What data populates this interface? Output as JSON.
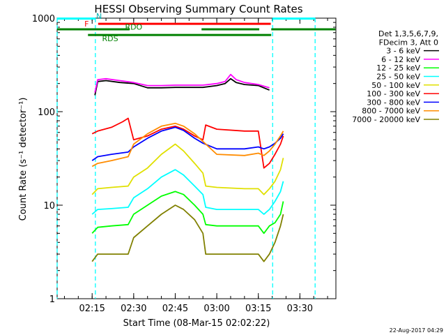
{
  "chart_data": {
    "type": "line",
    "title": "HESSI Observing Summary Count Rates",
    "xlabel": "Start Time (08-Mar-15 02:02:22)",
    "ylabel": "Count Rate (s⁻¹ detector⁻¹)",
    "yscale": "log",
    "ylim": [
      1,
      1000
    ],
    "xlim": [
      "02:02:22",
      "03:43:00"
    ],
    "y_ticks": [
      "1",
      "10",
      "100",
      "1000"
    ],
    "x_ticks": [
      "02:15",
      "02:30",
      "02:45",
      "03:00",
      "03:15",
      "03:30"
    ],
    "legend_header": [
      "Det 1,3,5,6,7,9,",
      "FDecim 3, Att 0"
    ],
    "legend_position": "right",
    "footer": "22-Aug-2017 04:29",
    "flags": {
      "N": {
        "label": "N",
        "intervals": [
          [
            "02:02:22",
            "02:16:10"
          ],
          [
            "03:20:10",
            "03:35:30"
          ]
        ]
      },
      "F": {
        "label": "F",
        "intervals": [
          [
            "02:17:10",
            "03:19:30"
          ]
        ]
      },
      "RDO": {
        "label": "RDO",
        "intervals": [
          [
            "02:02:22",
            "02:28:30"
          ],
          [
            "02:54:30",
            "03:15:20"
          ],
          [
            "03:19:40",
            "03:42:50"
          ]
        ]
      },
      "RDS": {
        "label": "RDS",
        "intervals": [
          [
            "02:13:30",
            "03:19:40"
          ]
        ]
      }
    },
    "boundaries": [
      "02:02:22",
      "02:16:10",
      "03:20:10",
      "03:35:30"
    ],
    "series": [
      {
        "name": "3 - 6 keV",
        "color": "#000000",
        "points": [
          [
            "02:16",
            "150"
          ],
          [
            "02:17",
            "210"
          ],
          [
            "02:20",
            "215"
          ],
          [
            "02:25",
            "205"
          ],
          [
            "02:30",
            "200"
          ],
          [
            "02:35",
            "180"
          ],
          [
            "02:40",
            "180"
          ],
          [
            "02:45",
            "182"
          ],
          [
            "02:50",
            "182"
          ],
          [
            "02:55",
            "182"
          ],
          [
            "03:00",
            "190"
          ],
          [
            "03:03",
            "200"
          ],
          [
            "03:05",
            "225"
          ],
          [
            "03:07",
            "205"
          ],
          [
            "03:10",
            "195"
          ],
          [
            "03:15",
            "190"
          ],
          [
            "03:19",
            "170"
          ]
        ]
      },
      {
        "name": "6 - 12 keV",
        "color": "#ff00ff",
        "points": [
          [
            "02:16",
            "160"
          ],
          [
            "02:17",
            "220"
          ],
          [
            "02:20",
            "225"
          ],
          [
            "02:25",
            "215"
          ],
          [
            "02:30",
            "205"
          ],
          [
            "02:35",
            "190"
          ],
          [
            "02:40",
            "190"
          ],
          [
            "02:45",
            "192"
          ],
          [
            "02:50",
            "192"
          ],
          [
            "02:55",
            "192"
          ],
          [
            "03:00",
            "200"
          ],
          [
            "03:03",
            "210"
          ],
          [
            "03:05",
            "250"
          ],
          [
            "03:07",
            "220"
          ],
          [
            "03:10",
            "205"
          ],
          [
            "03:15",
            "195"
          ],
          [
            "03:19",
            "180"
          ]
        ]
      },
      {
        "name": "12 - 25 keV",
        "color": "#00ff00",
        "points": [
          [
            "02:15",
            "5"
          ],
          [
            "02:17",
            "5.8"
          ],
          [
            "02:22",
            "6"
          ],
          [
            "02:28",
            "6.2"
          ],
          [
            "02:30",
            "8"
          ],
          [
            "02:35",
            "10"
          ],
          [
            "02:40",
            "12.5"
          ],
          [
            "02:45",
            "14"
          ],
          [
            "02:48",
            "13"
          ],
          [
            "02:52",
            "10"
          ],
          [
            "02:55",
            "8"
          ],
          [
            "02:56",
            "6.2"
          ],
          [
            "03:00",
            "6"
          ],
          [
            "03:10",
            "6"
          ],
          [
            "03:15",
            "6"
          ],
          [
            "03:17",
            "5"
          ],
          [
            "03:19",
            "6"
          ],
          [
            "03:21",
            "6.5"
          ],
          [
            "03:23",
            "8"
          ],
          [
            "03:24",
            "11"
          ]
        ]
      },
      {
        "name": "25 - 50 keV",
        "color": "#00ffff",
        "points": [
          [
            "02:15",
            "8"
          ],
          [
            "02:17",
            "9"
          ],
          [
            "02:22",
            "9.2"
          ],
          [
            "02:28",
            "9.5"
          ],
          [
            "02:30",
            "12"
          ],
          [
            "02:35",
            "15"
          ],
          [
            "02:40",
            "20"
          ],
          [
            "02:45",
            "24"
          ],
          [
            "02:48",
            "21"
          ],
          [
            "02:52",
            "16"
          ],
          [
            "02:55",
            "13"
          ],
          [
            "02:56",
            "9.5"
          ],
          [
            "03:00",
            "9"
          ],
          [
            "03:10",
            "9"
          ],
          [
            "03:15",
            "9"
          ],
          [
            "03:17",
            "8"
          ],
          [
            "03:19",
            "9"
          ],
          [
            "03:21",
            "11"
          ],
          [
            "03:23",
            "14"
          ],
          [
            "03:24",
            "18"
          ]
        ]
      },
      {
        "name": "50 - 100 keV",
        "color": "#e0e000",
        "points": [
          [
            "02:15",
            "13"
          ],
          [
            "02:17",
            "15"
          ],
          [
            "02:22",
            "15.5"
          ],
          [
            "02:28",
            "16"
          ],
          [
            "02:30",
            "20"
          ],
          [
            "02:35",
            "25"
          ],
          [
            "02:40",
            "35"
          ],
          [
            "02:45",
            "45"
          ],
          [
            "02:48",
            "38"
          ],
          [
            "02:52",
            "28"
          ],
          [
            "02:55",
            "22"
          ],
          [
            "02:56",
            "16"
          ],
          [
            "03:00",
            "15.5"
          ],
          [
            "03:10",
            "15"
          ],
          [
            "03:15",
            "15"
          ],
          [
            "03:17",
            "13"
          ],
          [
            "03:19",
            "15"
          ],
          [
            "03:21",
            "18"
          ],
          [
            "03:23",
            "24"
          ],
          [
            "03:24",
            "32"
          ]
        ]
      },
      {
        "name": "100 - 300 keV",
        "color": "#ff0000",
        "points": [
          [
            "02:15",
            "58"
          ],
          [
            "02:17",
            "62"
          ],
          [
            "02:22",
            "68"
          ],
          [
            "02:26",
            "78"
          ],
          [
            "02:28",
            "85"
          ],
          [
            "02:30",
            "50"
          ],
          [
            "02:35",
            "55"
          ],
          [
            "02:40",
            "65"
          ],
          [
            "02:45",
            "70"
          ],
          [
            "02:48",
            "65"
          ],
          [
            "02:52",
            "55"
          ],
          [
            "02:55",
            "50"
          ],
          [
            "02:56",
            "72"
          ],
          [
            "03:00",
            "65"
          ],
          [
            "03:10",
            "62"
          ],
          [
            "03:15",
            "62"
          ],
          [
            "03:17",
            "25"
          ],
          [
            "03:19",
            "28"
          ],
          [
            "03:21",
            "35"
          ],
          [
            "03:23",
            "45"
          ],
          [
            "03:24",
            "55"
          ]
        ]
      },
      {
        "name": "300 - 800 keV",
        "color": "#0000ff",
        "points": [
          [
            "02:15",
            "30"
          ],
          [
            "02:17",
            "33"
          ],
          [
            "02:22",
            "35"
          ],
          [
            "02:28",
            "37"
          ],
          [
            "02:30",
            "42"
          ],
          [
            "02:35",
            "52"
          ],
          [
            "02:40",
            "62"
          ],
          [
            "02:45",
            "68"
          ],
          [
            "02:48",
            "63"
          ],
          [
            "02:52",
            "52"
          ],
          [
            "02:55",
            "46"
          ],
          [
            "03:00",
            "40"
          ],
          [
            "03:10",
            "40"
          ],
          [
            "03:15",
            "42"
          ],
          [
            "03:17",
            "40"
          ],
          [
            "03:19",
            "42"
          ],
          [
            "03:21",
            "46"
          ],
          [
            "03:23",
            "52"
          ],
          [
            "03:24",
            "58"
          ]
        ]
      },
      {
        "name": "800 - 7000 keV",
        "color": "#ff8c00",
        "points": [
          [
            "02:15",
            "26"
          ],
          [
            "02:17",
            "28"
          ],
          [
            "02:22",
            "30"
          ],
          [
            "02:28",
            "33"
          ],
          [
            "02:30",
            "45"
          ],
          [
            "02:35",
            "58"
          ],
          [
            "02:40",
            "70"
          ],
          [
            "02:45",
            "75"
          ],
          [
            "02:48",
            "70"
          ],
          [
            "02:52",
            "58"
          ],
          [
            "02:55",
            "48"
          ],
          [
            "03:00",
            "35"
          ],
          [
            "03:10",
            "34"
          ],
          [
            "03:15",
            "36"
          ],
          [
            "03:17",
            "34"
          ],
          [
            "03:19",
            "38"
          ],
          [
            "03:21",
            "45"
          ],
          [
            "03:23",
            "55"
          ],
          [
            "03:24",
            "62"
          ]
        ]
      },
      {
        "name": "7000 - 20000 keV",
        "color": "#808000",
        "points": [
          [
            "02:15",
            "2.5"
          ],
          [
            "02:17",
            "3"
          ],
          [
            "02:22",
            "3"
          ],
          [
            "02:28",
            "3"
          ],
          [
            "02:30",
            "4.5"
          ],
          [
            "02:35",
            "6"
          ],
          [
            "02:40",
            "8"
          ],
          [
            "02:45",
            "10"
          ],
          [
            "02:48",
            "9"
          ],
          [
            "02:52",
            "7"
          ],
          [
            "02:55",
            "5"
          ],
          [
            "02:56",
            "3"
          ],
          [
            "03:00",
            "3"
          ],
          [
            "03:10",
            "3"
          ],
          [
            "03:15",
            "3"
          ],
          [
            "03:17",
            "2.5"
          ],
          [
            "03:19",
            "3"
          ],
          [
            "03:21",
            "4"
          ],
          [
            "03:23",
            "6"
          ],
          [
            "03:24",
            "8"
          ]
        ]
      }
    ]
  }
}
